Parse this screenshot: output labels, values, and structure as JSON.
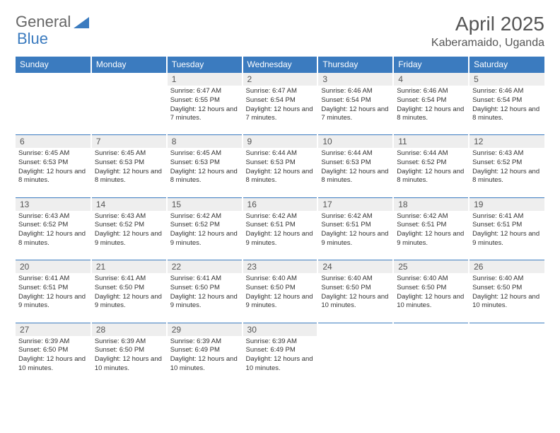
{
  "brand": {
    "part1": "General",
    "part2": "Blue"
  },
  "title": {
    "month": "April 2025",
    "location": "Kaberamaido, Uganda"
  },
  "dayNames": [
    "Sunday",
    "Monday",
    "Tuesday",
    "Wednesday",
    "Thursday",
    "Friday",
    "Saturday"
  ],
  "colors": {
    "headerBg": "#3b7bbf",
    "headerText": "#ffffff",
    "dayNumBg": "#eeeeee",
    "ruleColor": "#3b7bbf",
    "bodyText": "#333333",
    "titleText": "#555555"
  },
  "layout": {
    "cols": 7,
    "rows": 5,
    "cellHeight": 88
  },
  "weeks": [
    [
      {
        "empty": true
      },
      {
        "empty": true
      },
      {
        "num": "1",
        "sunrise": "6:47 AM",
        "sunset": "6:55 PM",
        "daylight": "12 hours and 7 minutes."
      },
      {
        "num": "2",
        "sunrise": "6:47 AM",
        "sunset": "6:54 PM",
        "daylight": "12 hours and 7 minutes."
      },
      {
        "num": "3",
        "sunrise": "6:46 AM",
        "sunset": "6:54 PM",
        "daylight": "12 hours and 7 minutes."
      },
      {
        "num": "4",
        "sunrise": "6:46 AM",
        "sunset": "6:54 PM",
        "daylight": "12 hours and 8 minutes."
      },
      {
        "num": "5",
        "sunrise": "6:46 AM",
        "sunset": "6:54 PM",
        "daylight": "12 hours and 8 minutes."
      }
    ],
    [
      {
        "num": "6",
        "sunrise": "6:45 AM",
        "sunset": "6:53 PM",
        "daylight": "12 hours and 8 minutes."
      },
      {
        "num": "7",
        "sunrise": "6:45 AM",
        "sunset": "6:53 PM",
        "daylight": "12 hours and 8 minutes."
      },
      {
        "num": "8",
        "sunrise": "6:45 AM",
        "sunset": "6:53 PM",
        "daylight": "12 hours and 8 minutes."
      },
      {
        "num": "9",
        "sunrise": "6:44 AM",
        "sunset": "6:53 PM",
        "daylight": "12 hours and 8 minutes."
      },
      {
        "num": "10",
        "sunrise": "6:44 AM",
        "sunset": "6:53 PM",
        "daylight": "12 hours and 8 minutes."
      },
      {
        "num": "11",
        "sunrise": "6:44 AM",
        "sunset": "6:52 PM",
        "daylight": "12 hours and 8 minutes."
      },
      {
        "num": "12",
        "sunrise": "6:43 AM",
        "sunset": "6:52 PM",
        "daylight": "12 hours and 8 minutes."
      }
    ],
    [
      {
        "num": "13",
        "sunrise": "6:43 AM",
        "sunset": "6:52 PM",
        "daylight": "12 hours and 8 minutes."
      },
      {
        "num": "14",
        "sunrise": "6:43 AM",
        "sunset": "6:52 PM",
        "daylight": "12 hours and 9 minutes."
      },
      {
        "num": "15",
        "sunrise": "6:42 AM",
        "sunset": "6:52 PM",
        "daylight": "12 hours and 9 minutes."
      },
      {
        "num": "16",
        "sunrise": "6:42 AM",
        "sunset": "6:51 PM",
        "daylight": "12 hours and 9 minutes."
      },
      {
        "num": "17",
        "sunrise": "6:42 AM",
        "sunset": "6:51 PM",
        "daylight": "12 hours and 9 minutes."
      },
      {
        "num": "18",
        "sunrise": "6:42 AM",
        "sunset": "6:51 PM",
        "daylight": "12 hours and 9 minutes."
      },
      {
        "num": "19",
        "sunrise": "6:41 AM",
        "sunset": "6:51 PM",
        "daylight": "12 hours and 9 minutes."
      }
    ],
    [
      {
        "num": "20",
        "sunrise": "6:41 AM",
        "sunset": "6:51 PM",
        "daylight": "12 hours and 9 minutes."
      },
      {
        "num": "21",
        "sunrise": "6:41 AM",
        "sunset": "6:50 PM",
        "daylight": "12 hours and 9 minutes."
      },
      {
        "num": "22",
        "sunrise": "6:41 AM",
        "sunset": "6:50 PM",
        "daylight": "12 hours and 9 minutes."
      },
      {
        "num": "23",
        "sunrise": "6:40 AM",
        "sunset": "6:50 PM",
        "daylight": "12 hours and 9 minutes."
      },
      {
        "num": "24",
        "sunrise": "6:40 AM",
        "sunset": "6:50 PM",
        "daylight": "12 hours and 10 minutes."
      },
      {
        "num": "25",
        "sunrise": "6:40 AM",
        "sunset": "6:50 PM",
        "daylight": "12 hours and 10 minutes."
      },
      {
        "num": "26",
        "sunrise": "6:40 AM",
        "sunset": "6:50 PM",
        "daylight": "12 hours and 10 minutes."
      }
    ],
    [
      {
        "num": "27",
        "sunrise": "6:39 AM",
        "sunset": "6:50 PM",
        "daylight": "12 hours and 10 minutes."
      },
      {
        "num": "28",
        "sunrise": "6:39 AM",
        "sunset": "6:50 PM",
        "daylight": "12 hours and 10 minutes."
      },
      {
        "num": "29",
        "sunrise": "6:39 AM",
        "sunset": "6:49 PM",
        "daylight": "12 hours and 10 minutes."
      },
      {
        "num": "30",
        "sunrise": "6:39 AM",
        "sunset": "6:49 PM",
        "daylight": "12 hours and 10 minutes."
      },
      {
        "empty": true
      },
      {
        "empty": true
      },
      {
        "empty": true
      }
    ]
  ],
  "labels": {
    "sunrise": "Sunrise:",
    "sunset": "Sunset:",
    "daylight": "Daylight:"
  }
}
